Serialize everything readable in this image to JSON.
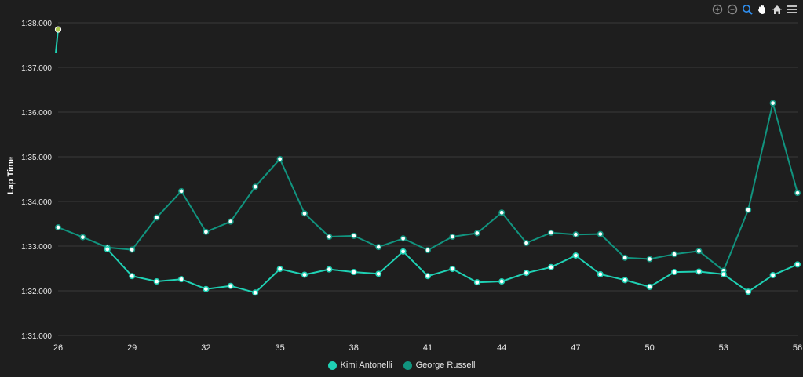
{
  "toolbar": {
    "icons": [
      "zoom-in-icon",
      "zoom-out-icon",
      "selection-zoom-icon",
      "pan-icon",
      "reset-home-icon",
      "menu-icon"
    ]
  },
  "colors": {
    "background": "#1e1e1e",
    "grid": "#3a3a3a",
    "axis_text": "#e8e8e8",
    "toolbar_icon": "#8a8a8a",
    "toolbar_active": "#2f8ff0",
    "highlight_point": "#a6c34a"
  },
  "chart_data": {
    "type": "line",
    "title": "",
    "xlabel": "",
    "ylabel": "Lap Time",
    "x": [
      26,
      27,
      28,
      29,
      30,
      31,
      32,
      33,
      34,
      35,
      36,
      37,
      38,
      39,
      40,
      41,
      42,
      43,
      44,
      45,
      46,
      47,
      48,
      49,
      50,
      51,
      52,
      53,
      54,
      55,
      56
    ],
    "x_ticks": [
      "26",
      "29",
      "32",
      "35",
      "38",
      "41",
      "44",
      "47",
      "50",
      "53",
      "56"
    ],
    "y_tick_labels": [
      "1:31.000",
      "1:32.000",
      "1:33.000",
      "1:34.000",
      "1:35.000",
      "1:36.000",
      "1:37.000",
      "1:38.000"
    ],
    "ylim_seconds": [
      91,
      98
    ],
    "grid": true,
    "legend_position": "bottom",
    "series": [
      {
        "name": "Kimi Antonelli",
        "color": "#1fd1b4",
        "values_seconds": [
          97.85,
          null,
          92.93,
          92.33,
          92.21,
          92.26,
          92.04,
          92.11,
          91.96,
          92.49,
          92.36,
          92.48,
          92.42,
          92.38,
          92.88,
          92.33,
          92.49,
          92.19,
          92.21,
          92.4,
          92.53,
          92.79,
          92.37,
          92.24,
          92.09,
          92.42,
          92.43,
          92.37,
          91.98,
          92.35,
          92.59
        ]
      },
      {
        "name": "George Russell",
        "color": "#11947f",
        "values_seconds": [
          93.42,
          93.2,
          92.97,
          92.92,
          93.64,
          94.23,
          93.32,
          93.55,
          94.33,
          94.95,
          93.73,
          93.21,
          93.23,
          92.98,
          93.17,
          92.91,
          93.21,
          93.29,
          93.75,
          93.07,
          93.3,
          93.26,
          93.27,
          92.74,
          92.71,
          92.82,
          92.89,
          92.45,
          93.81,
          96.2,
          94.19
        ]
      }
    ],
    "highlighted_point": {
      "series": "Kimi Antonelli",
      "x": 26,
      "value_seconds": 97.85
    }
  }
}
